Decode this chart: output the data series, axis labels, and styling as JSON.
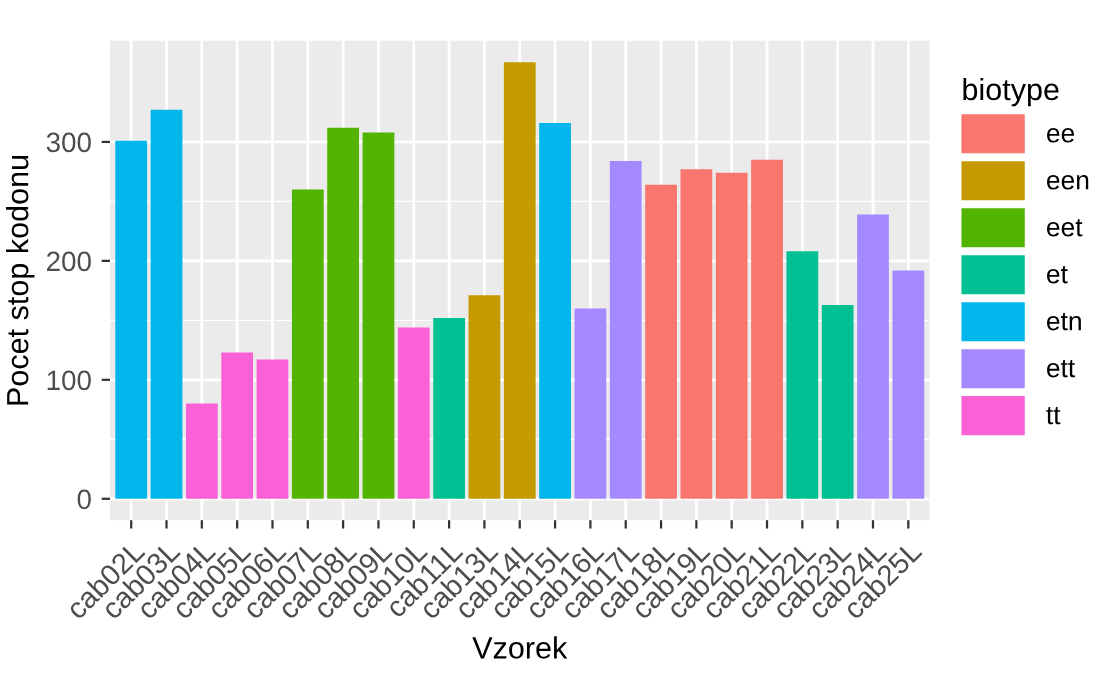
{
  "chart_data": {
    "type": "bar",
    "xlabel": "Vzorek",
    "ylabel": "Pocet stop kodonu",
    "legend_title": "biotype",
    "legend": "right",
    "grid": true,
    "categories": [
      "cab02L",
      "cab03L",
      "cab04L",
      "cab05L",
      "cab06L",
      "cab07L",
      "cab08L",
      "cab09L",
      "cab10L",
      "cab11L",
      "cab13L",
      "cab14L",
      "cab15L",
      "cab16L",
      "cab17L",
      "cab18L",
      "cab19L",
      "cab20L",
      "cab21L",
      "cab22L",
      "cab23L",
      "cab24L",
      "cab25L"
    ],
    "ylim": [
      -18,
      385
    ],
    "yticks": [
      0,
      100,
      200,
      300
    ],
    "series": [
      {
        "name": "ee",
        "color": "#f8766d",
        "values": [
          null,
          null,
          null,
          null,
          null,
          null,
          null,
          null,
          null,
          null,
          null,
          null,
          null,
          null,
          null,
          264,
          277,
          274,
          285,
          null,
          null,
          null,
          null
        ]
      },
      {
        "name": "een",
        "color": "#c49a00",
        "values": [
          null,
          null,
          null,
          null,
          null,
          null,
          null,
          null,
          null,
          null,
          171,
          367,
          null,
          null,
          null,
          null,
          null,
          null,
          null,
          null,
          null,
          null,
          null
        ]
      },
      {
        "name": "eet",
        "color": "#53b400",
        "values": [
          null,
          null,
          null,
          null,
          null,
          260,
          312,
          308,
          null,
          null,
          null,
          null,
          null,
          null,
          null,
          null,
          null,
          null,
          null,
          null,
          null,
          null,
          null
        ]
      },
      {
        "name": "et",
        "color": "#00c094",
        "values": [
          null,
          null,
          null,
          null,
          null,
          null,
          null,
          null,
          null,
          152,
          null,
          null,
          null,
          null,
          null,
          null,
          null,
          null,
          null,
          208,
          163,
          null,
          null
        ]
      },
      {
        "name": "etn",
        "color": "#00b6eb",
        "values": [
          301,
          327,
          null,
          null,
          null,
          null,
          null,
          null,
          null,
          null,
          null,
          null,
          316,
          null,
          null,
          null,
          null,
          null,
          null,
          null,
          null,
          null,
          null
        ]
      },
      {
        "name": "ett",
        "color": "#a58aff",
        "values": [
          null,
          null,
          null,
          null,
          null,
          null,
          null,
          null,
          null,
          null,
          null,
          null,
          null,
          160,
          284,
          null,
          null,
          null,
          null,
          null,
          null,
          239,
          192
        ]
      },
      {
        "name": "tt",
        "color": "#fb61d7",
        "values": [
          null,
          null,
          80,
          123,
          117,
          null,
          null,
          null,
          144,
          null,
          null,
          null,
          null,
          null,
          null,
          null,
          null,
          null,
          null,
          null,
          null,
          null,
          null
        ]
      }
    ]
  }
}
